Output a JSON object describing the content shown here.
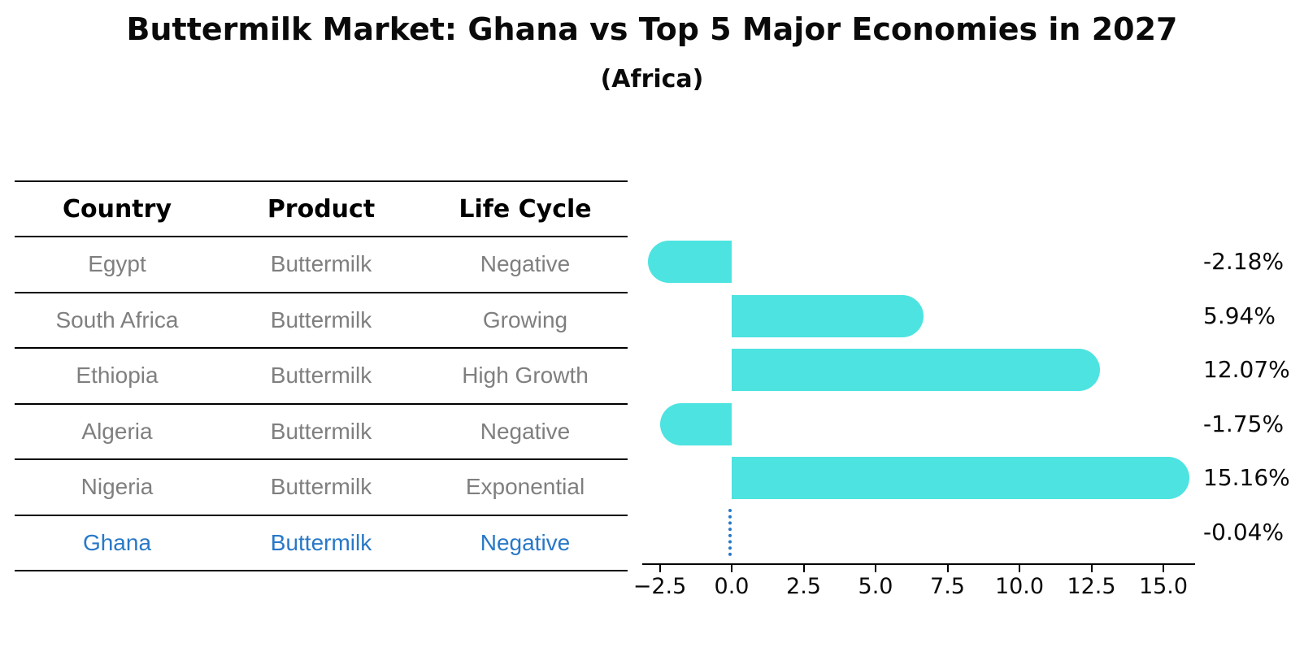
{
  "title": "Buttermilk Market: Ghana vs Top 5 Major Economies in 2027",
  "subtitle": "(Africa)",
  "table": {
    "headers": [
      "Country",
      "Product",
      "Life Cycle"
    ],
    "rows": [
      {
        "country": "Egypt",
        "product": "Buttermilk",
        "life_cycle": "Negative"
      },
      {
        "country": "South Africa",
        "product": "Buttermilk",
        "life_cycle": "Growing"
      },
      {
        "country": "Ethiopia",
        "product": "Buttermilk",
        "life_cycle": "High Growth"
      },
      {
        "country": "Algeria",
        "product": "Buttermilk",
        "life_cycle": "Negative"
      },
      {
        "country": "Nigeria",
        "product": "Buttermilk",
        "life_cycle": "Exponential"
      },
      {
        "country": "Ghana",
        "product": "Buttermilk",
        "life_cycle": "Negative"
      }
    ]
  },
  "chart_data": {
    "type": "bar",
    "orientation": "horizontal",
    "categories": [
      "Egypt",
      "South Africa",
      "Ethiopia",
      "Algeria",
      "Nigeria",
      "Ghana"
    ],
    "values": [
      -2.18,
      5.94,
      12.07,
      -1.75,
      15.16,
      -0.04
    ],
    "value_labels": [
      "-2.18%",
      "5.94%",
      "12.07%",
      "-1.75%",
      "15.16%",
      "-0.04%"
    ],
    "x_ticks": [
      "−2.5",
      "0.0",
      "2.5",
      "5.0",
      "7.5",
      "10.0",
      "12.5",
      "15.0"
    ],
    "x_tick_values": [
      -2.5,
      0.0,
      2.5,
      5.0,
      7.5,
      10.0,
      12.5,
      15.0
    ],
    "xlim": [
      -3.1,
      16.1
    ],
    "grid": false,
    "legend": "none",
    "highlight_index": 5,
    "highlight_style": "dotted-outline"
  },
  "colors": {
    "bar": "#4de3e0",
    "highlight_blue": "#2878c8",
    "row_text": "#7f7f7f",
    "axis": "#000000"
  }
}
